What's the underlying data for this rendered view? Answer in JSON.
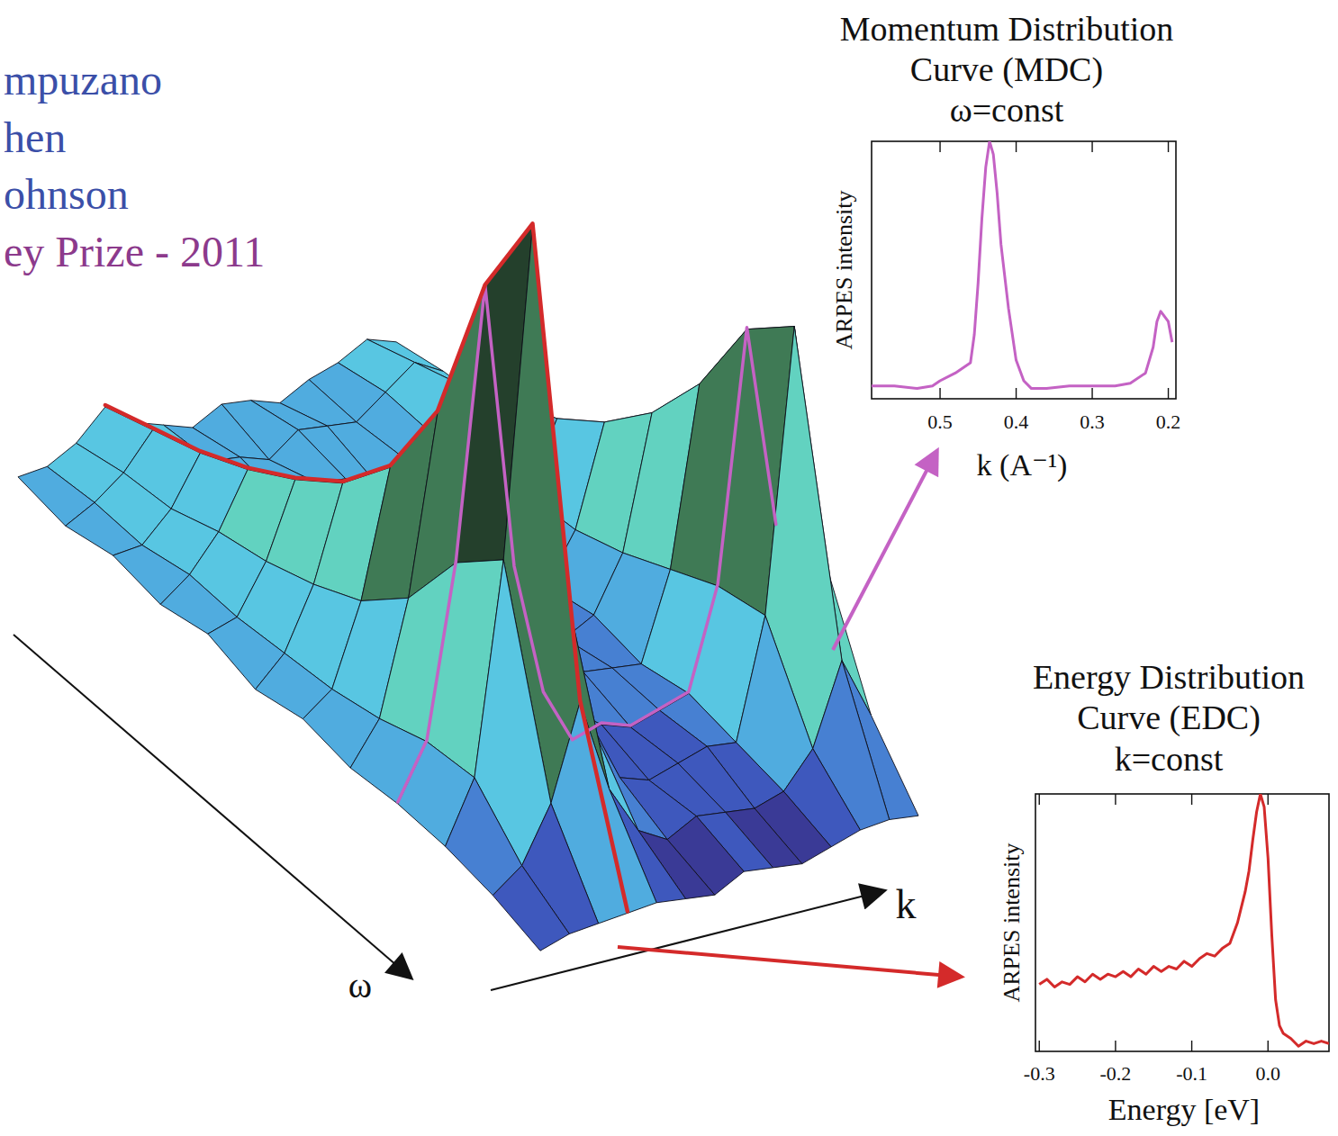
{
  "chart_data": [
    {
      "type": "surface",
      "xlabel": "k",
      "ylabel": "ω",
      "annotations": [
        "mpuzano",
        "hen",
        "ohnson",
        "ey Prize - 2011"
      ],
      "zlim": [
        0,
        1
      ],
      "tick_labels": false,
      "cells": [
        [
          0.16,
          0.16,
          0.18,
          0.22,
          0.18,
          0.16,
          0.14,
          0.16,
          0.15,
          0.13,
          0.15,
          0.16,
          0.18,
          0.16
        ],
        [
          0.14,
          0.16,
          0.19,
          0.24,
          0.19,
          0.16,
          0.15,
          0.13,
          0.16,
          0.15,
          0.14,
          0.17,
          0.2,
          0.17
        ],
        [
          0.15,
          0.15,
          0.19,
          0.26,
          0.19,
          0.15,
          0.13,
          0.15,
          0.14,
          0.12,
          0.14,
          0.16,
          0.22,
          0.17
        ],
        [
          0.13,
          0.16,
          0.21,
          0.29,
          0.2,
          0.16,
          0.14,
          0.12,
          0.15,
          0.14,
          0.13,
          0.17,
          0.25,
          0.18
        ],
        [
          0.14,
          0.15,
          0.22,
          0.33,
          0.21,
          0.15,
          0.12,
          0.14,
          0.13,
          0.11,
          0.13,
          0.18,
          0.28,
          0.19
        ],
        [
          0.11,
          0.15,
          0.24,
          0.38,
          0.22,
          0.15,
          0.12,
          0.1,
          0.13,
          0.12,
          0.11,
          0.18,
          0.33,
          0.2
        ],
        [
          0.12,
          0.15,
          0.27,
          0.46,
          0.26,
          0.16,
          0.11,
          0.13,
          0.12,
          0.1,
          0.12,
          0.2,
          0.4,
          0.23
        ],
        [
          0.1,
          0.16,
          0.33,
          0.6,
          0.31,
          0.17,
          0.11,
          0.09,
          0.12,
          0.11,
          0.1,
          0.23,
          0.5,
          0.27
        ],
        [
          0.1,
          0.18,
          0.44,
          0.85,
          0.4,
          0.19,
          0.1,
          0.11,
          0.09,
          0.1,
          0.11,
          0.26,
          0.64,
          0.32
        ],
        [
          0.09,
          0.18,
          0.5,
          1.0,
          0.45,
          0.2,
          0.1,
          0.08,
          0.09,
          0.1,
          0.09,
          0.27,
          0.7,
          0.33
        ],
        [
          0.07,
          0.1,
          0.18,
          0.32,
          0.17,
          0.09,
          0.06,
          0.08,
          0.07,
          0.06,
          0.07,
          0.12,
          0.24,
          0.14
        ],
        [
          0.04,
          0.05,
          0.05,
          0.05,
          0.05,
          0.04,
          0.03,
          0.05,
          0.04,
          0.03,
          0.04,
          0.05,
          0.05,
          0.04
        ]
      ]
    },
    {
      "type": "line",
      "title": "Momentum Distribution Curve (MDC)",
      "subtitle": "ω=const",
      "xlabel": "k (A⁻¹)",
      "ylabel": "ARPES intensity",
      "color": "#c462c4",
      "xlim": [
        0.59,
        0.19
      ],
      "xticks": [
        0.5,
        0.4,
        0.3,
        0.2
      ],
      "ylim": [
        0,
        1
      ],
      "tick_labels": "x",
      "x": [
        0.59,
        0.56,
        0.53,
        0.51,
        0.5,
        0.48,
        0.46,
        0.455,
        0.45,
        0.445,
        0.44,
        0.435,
        0.43,
        0.425,
        0.42,
        0.41,
        0.4,
        0.39,
        0.38,
        0.36,
        0.33,
        0.3,
        0.27,
        0.25,
        0.23,
        0.22,
        0.215,
        0.21,
        0.2,
        0.195
      ],
      "values": [
        0.05,
        0.05,
        0.04,
        0.05,
        0.07,
        0.1,
        0.14,
        0.25,
        0.45,
        0.7,
        0.9,
        1.0,
        0.95,
        0.8,
        0.6,
        0.35,
        0.15,
        0.07,
        0.04,
        0.04,
        0.05,
        0.05,
        0.05,
        0.06,
        0.1,
        0.2,
        0.3,
        0.34,
        0.3,
        0.22
      ]
    },
    {
      "type": "line",
      "title": "Energy Distribution Curve (EDC)",
      "subtitle": "k=const",
      "xlabel": "Energy [eV]",
      "ylabel": "ARPES intensity",
      "color": "#d42a2a",
      "xlim": [
        -0.305,
        0.08
      ],
      "xticks": [
        -0.3,
        -0.2,
        -0.1,
        {
          "value": 0,
          "label": "0.0"
        }
      ],
      "ylim": [
        0,
        1
      ],
      "tick_labels": "x",
      "x": [
        -0.3,
        -0.29,
        -0.28,
        -0.27,
        -0.26,
        -0.25,
        -0.24,
        -0.23,
        -0.22,
        -0.21,
        -0.2,
        -0.19,
        -0.18,
        -0.17,
        -0.16,
        -0.15,
        -0.14,
        -0.13,
        -0.12,
        -0.11,
        -0.1,
        -0.09,
        -0.08,
        -0.07,
        -0.06,
        -0.05,
        -0.04,
        -0.03,
        -0.025,
        -0.02,
        -0.015,
        -0.01,
        -0.005,
        0,
        0.005,
        0.01,
        0.015,
        0.02,
        0.03,
        0.04,
        0.05,
        0.06,
        0.07,
        0.08
      ],
      "values": [
        0.26,
        0.28,
        0.25,
        0.27,
        0.26,
        0.29,
        0.27,
        0.3,
        0.28,
        0.3,
        0.29,
        0.31,
        0.29,
        0.32,
        0.3,
        0.33,
        0.31,
        0.33,
        0.32,
        0.35,
        0.33,
        0.36,
        0.38,
        0.37,
        0.4,
        0.42,
        0.5,
        0.62,
        0.7,
        0.82,
        0.93,
        1.0,
        0.95,
        0.75,
        0.45,
        0.2,
        0.1,
        0.07,
        0.05,
        0.02,
        0.04,
        0.03,
        0.04,
        0.03
      ]
    }
  ]
}
